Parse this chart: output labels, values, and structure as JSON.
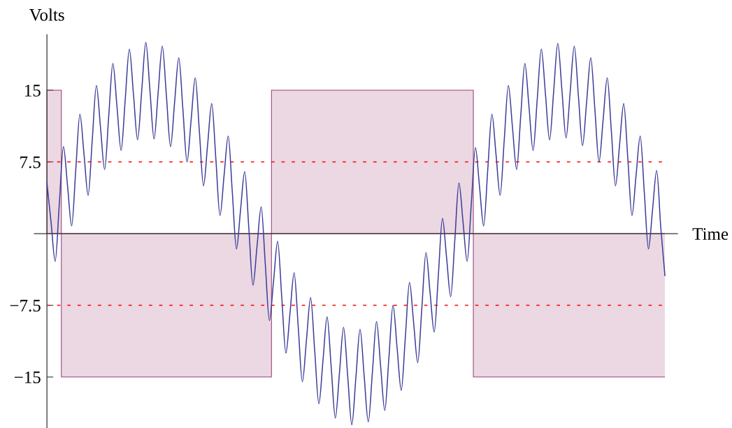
{
  "chart_data": {
    "type": "line",
    "xlabel": "Time",
    "ylabel": "Volts",
    "tick_labels": "y",
    "categories": [
      null,
      null,
      null,
      null,
      null,
      null,
      null,
      null,
      null,
      null,
      null,
      null,
      null,
      null,
      null,
      null,
      null,
      null,
      null,
      null,
      null,
      null,
      null,
      null,
      null,
      null,
      null,
      null,
      null,
      null,
      null,
      null,
      null,
      null,
      null,
      null,
      null,
      null,
      null,
      null,
      null,
      null,
      null,
      null,
      null,
      null,
      null,
      null,
      null,
      null,
      null,
      null,
      null,
      null,
      null,
      null,
      null,
      null,
      null,
      null,
      null,
      null,
      null,
      null,
      null,
      null,
      null,
      null,
      null,
      null,
      null,
      null,
      null,
      null,
      null,
      null,
      null,
      null,
      null,
      null,
      null,
      null,
      null,
      null,
      null,
      null,
      null,
      null,
      null,
      null,
      null,
      null,
      null,
      null,
      null,
      null,
      null,
      null,
      null,
      null,
      null,
      null,
      null,
      null,
      null,
      null,
      null,
      null,
      null,
      null,
      null,
      null,
      null,
      null,
      null,
      null,
      null,
      null,
      null,
      null,
      null,
      null,
      null,
      null,
      null,
      null,
      null,
      null,
      null,
      null,
      null,
      null,
      null,
      null,
      null,
      null,
      null,
      null,
      null,
      null,
      null,
      null,
      null,
      null,
      null,
      null,
      null,
      null,
      null,
      null,
      null
    ],
    "series": [
      {
        "type": "area",
        "color": "#993d74",
        "values": [
          15,
          15,
          15,
          15,
          -15,
          -15,
          -15,
          -15,
          -15,
          -15,
          -15,
          -15,
          -15,
          -15,
          -15,
          -15,
          -15,
          -15,
          -15,
          -15,
          -15,
          -15,
          -15,
          -15,
          -15,
          -15,
          -15,
          -15,
          -15,
          -15,
          -15,
          -15,
          -15,
          -15,
          -15,
          -15,
          -15,
          -15,
          -15,
          -15,
          -15,
          -15,
          -15,
          -15,
          -15,
          -15,
          -15,
          -15,
          -15,
          -15,
          -15,
          -15,
          -15,
          -15,
          -15,
          15,
          15,
          15,
          15,
          15,
          15,
          15,
          15,
          15,
          15,
          15,
          15,
          15,
          15,
          15,
          15,
          15,
          15,
          15,
          15,
          15,
          15,
          15,
          15,
          15,
          15,
          15,
          15,
          15,
          15,
          15,
          15,
          15,
          15,
          15,
          15,
          15,
          15,
          15,
          15,
          15,
          15,
          15,
          15,
          15,
          15,
          15,
          15,
          15,
          -15,
          -15,
          -15,
          -15,
          -15,
          -15,
          -15,
          -15,
          -15,
          -15,
          -15,
          -15,
          -15,
          -15,
          -15,
          -15,
          -15,
          -15,
          -15,
          -15,
          -15,
          -15,
          -15,
          -15,
          -15,
          -15,
          -15,
          -15,
          -15,
          -15,
          -15,
          -15,
          -15,
          -15,
          -15,
          -15,
          -15,
          -15,
          -15,
          -15,
          -15,
          -15,
          -15,
          -15,
          -15,
          -15,
          -15
        ]
      },
      {
        "color": "#3d3d99",
        "values": [
          5.3,
          1.2,
          -2.9,
          3.1,
          9.1,
          5.0,
          0.8,
          6.7,
          12.5,
          8.3,
          4.0,
          9.8,
          15.5,
          11.1,
          6.7,
          12.3,
          17.8,
          13.3,
          8.7,
          14.0,
          19.3,
          14.6,
          9.8,
          14.9,
          20.0,
          15.0,
          9.9,
          14.8,
          19.6,
          14.4,
          9.1,
          13.8,
          18.4,
          13.0,
          7.5,
          11.9,
          16.3,
          10.7,
          5.0,
          9.3,
          13.6,
          7.8,
          1.9,
          6.1,
          10.2,
          4.3,
          -1.6,
          2.5,
          6.5,
          0.6,
          -5.4,
          -1.3,
          2.8,
          -3.2,
          -9.1,
          -5.0,
          -0.8,
          -6.7,
          -12.5,
          -8.3,
          -4.1,
          -9.8,
          -15.5,
          -11.1,
          -6.7,
          -12.3,
          -17.8,
          -13.3,
          -8.7,
          -14.0,
          -19.3,
          -14.6,
          -9.8,
          -14.9,
          -20.0,
          -15.0,
          -10.0,
          -14.9,
          -19.7,
          -14.5,
          -9.2,
          -13.9,
          -18.5,
          -13.0,
          -7.5,
          -12.0,
          -16.4,
          -10.8,
          -5.1,
          -9.3,
          -13.5,
          -7.8,
          -2.0,
          -6.2,
          -10.3,
          -4.4,
          1.6,
          -2.5,
          -6.6,
          -0.7,
          5.3,
          1.2,
          -2.9,
          3.1,
          9.0,
          4.9,
          0.8,
          6.7,
          12.5,
          8.3,
          4.0,
          9.8,
          15.5,
          11.1,
          6.7,
          12.3,
          17.8,
          13.3,
          8.7,
          14.0,
          19.3,
          14.6,
          9.8,
          14.9,
          19.9,
          15.0,
          10.0,
          14.8,
          19.6,
          14.4,
          9.2,
          13.8,
          18.4,
          13.0,
          7.5,
          11.9,
          16.3,
          10.7,
          5.0,
          9.3,
          13.6,
          7.8,
          1.9,
          6.1,
          10.2,
          4.3,
          -1.6,
          2.5,
          6.6,
          0.6,
          -4.4
        ]
      }
    ],
    "ylim": [
      -20.3,
      20.8
    ],
    "yticks": [
      15,
      7.5,
      {
        "value": -7.5,
        "label": "−7.5"
      },
      {
        "value": -15,
        "label": "−15"
      }
    ],
    "ref_lines": [
      {
        "axis": "y",
        "value": 7.5,
        "color": "#ff0000",
        "line_style": "dashed"
      },
      {
        "axis": "y",
        "value": -7.5,
        "color": "#ff0000",
        "line_style": "dashed"
      }
    ]
  }
}
